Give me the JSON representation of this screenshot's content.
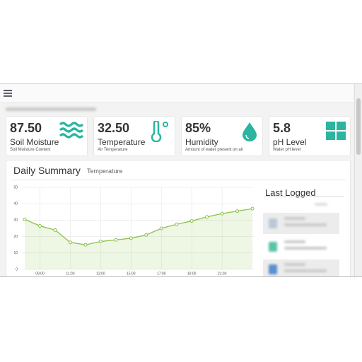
{
  "cards": [
    {
      "value": "87.50",
      "title": "Soil Moisture",
      "subtitle": "Soil Moisture Content"
    },
    {
      "value": "32.50",
      "title": "Temperature",
      "subtitle": "Air Temperature"
    },
    {
      "value": "85%",
      "title": "Humidity",
      "subtitle": "Amount of water present on air"
    },
    {
      "value": "5.8",
      "title": "pH Level",
      "subtitle": "Water pH level"
    }
  ],
  "panel": {
    "title": "Daily Summary",
    "subtitle": "Temperature",
    "side_title": "Last Logged"
  },
  "chart_data": {
    "type": "line",
    "categories": [
      null,
      "09:00",
      null,
      "11:00",
      null,
      "13:00",
      null,
      "15:00",
      null,
      "17:00",
      null,
      "19:00",
      null,
      "21:00",
      null,
      null
    ],
    "series": [
      {
        "name": "Temperature",
        "color": "#8bc34a",
        "values": [
          30.5,
          26.5,
          24,
          16.5,
          15,
          17,
          18,
          19,
          21,
          25,
          27.5,
          29.5,
          32,
          34,
          35.5,
          37
        ]
      }
    ],
    "ylim": [
      0,
      50
    ],
    "yticks": [
      0,
      10,
      20,
      30,
      40,
      50
    ],
    "grid": true
  }
}
